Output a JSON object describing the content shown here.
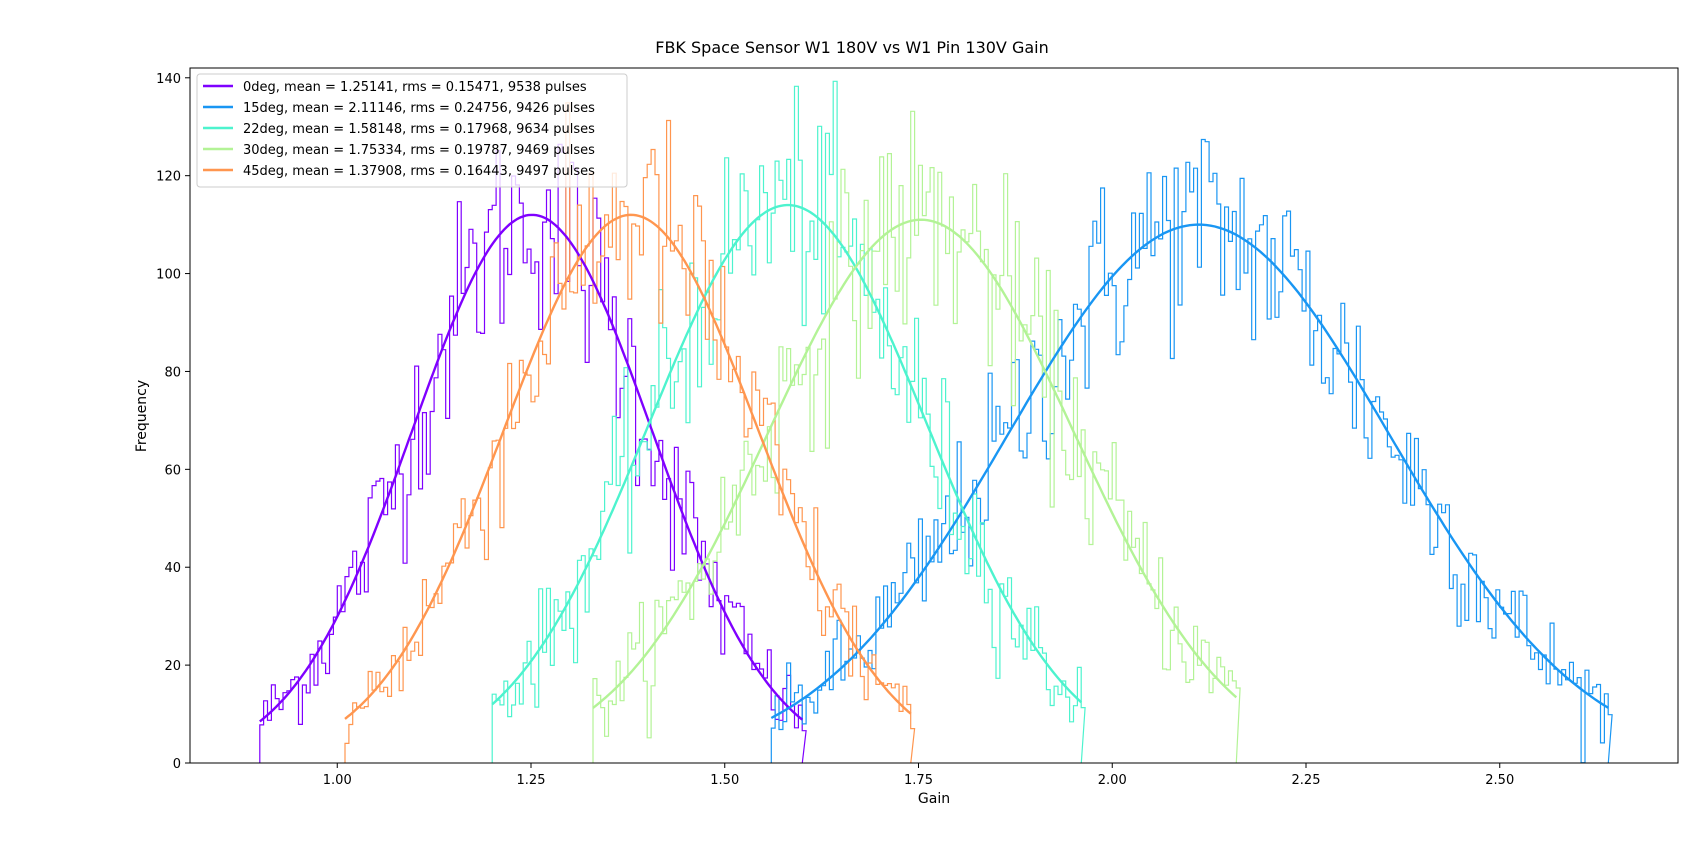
{
  "chart_data": {
    "type": "line",
    "title": "FBK Space Sensor W1 180V vs W1 Pin 130V Gain",
    "xlabel": "Gain",
    "ylabel": "Frequency",
    "xlim": [
      0.81,
      2.73
    ],
    "ylim": [
      0,
      142
    ],
    "x_ticks": [
      1.0,
      1.25,
      1.5,
      1.75,
      2.0,
      2.25,
      2.5
    ],
    "x_tick_labels": [
      "1.00",
      "1.25",
      "1.50",
      "1.75",
      "2.00",
      "2.25",
      "2.50"
    ],
    "y_ticks": [
      0,
      20,
      40,
      60,
      80,
      100,
      120,
      140
    ],
    "y_tick_labels": [
      "0",
      "20",
      "40",
      "60",
      "80",
      "100",
      "120",
      "140"
    ],
    "grid": false,
    "legend_position": "top-left",
    "series": [
      {
        "name": "0deg, mean = 1.25141, rms = 0.15471, 9538 pulses",
        "color": "#7f00ff",
        "fit_mean": 1.25141,
        "fit_sigma": 0.15471,
        "fit_peak": 112,
        "range": [
          0.9,
          1.6
        ]
      },
      {
        "name": "15deg, mean = 2.11146, rms = 0.24756, 9426 pulses",
        "color": "#1996f3",
        "fit_mean": 2.11146,
        "fit_sigma": 0.24756,
        "fit_peak": 110,
        "range": [
          1.56,
          2.64
        ]
      },
      {
        "name": "22deg, mean = 1.58148, rms = 0.17968, 9634 pulses",
        "color": "#4df3ce",
        "fit_mean": 1.58148,
        "fit_sigma": 0.17968,
        "fit_peak": 114,
        "range": [
          1.2,
          1.96
        ]
      },
      {
        "name": "30deg, mean = 1.75334, rms = 0.19787, 9469 pulses",
        "color": "#b3f396",
        "fit_mean": 1.75334,
        "fit_sigma": 0.19787,
        "fit_peak": 111,
        "range": [
          1.33,
          2.16
        ]
      },
      {
        "name": "45deg, mean = 1.37908, rms = 0.16443, 9497 pulses",
        "color": "#ff964f",
        "fit_mean": 1.37908,
        "fit_sigma": 0.16443,
        "fit_peak": 112,
        "range": [
          1.01,
          1.74
        ]
      }
    ]
  }
}
